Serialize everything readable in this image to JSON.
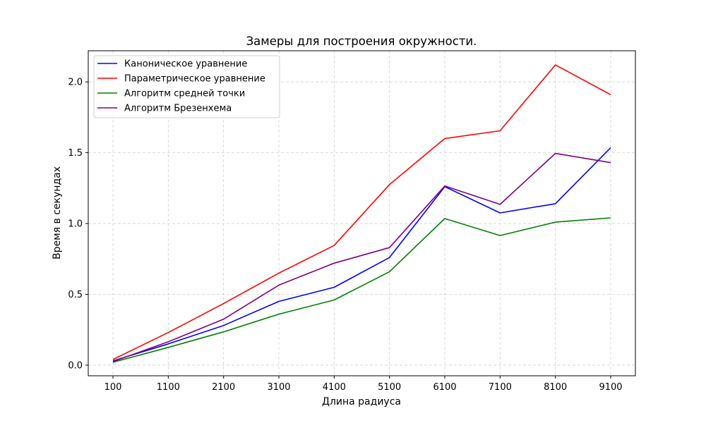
{
  "chart_data": {
    "type": "line",
    "title": "Замеры для построения окружности.",
    "xlabel": "Длина радиуса",
    "ylabel": "Время в секундах",
    "categories": [
      "100",
      "1100",
      "2100",
      "3100",
      "4100",
      "5100",
      "6100",
      "7100",
      "8100",
      "9100"
    ],
    "ylim": [
      -0.075,
      2.22
    ],
    "yticks": [
      "0.0",
      "0.5",
      "1.0",
      "1.5",
      "2.0"
    ],
    "grid": true,
    "legend_position": "top-left",
    "series": [
      {
        "name": "Каноническое уравнение",
        "color": "#0000ff",
        "values": [
          0.03,
          0.15,
          0.28,
          0.45,
          0.55,
          0.76,
          1.26,
          1.075,
          1.14,
          1.535
        ]
      },
      {
        "name": "Параметрическое уравнение",
        "color": "#ff0000",
        "values": [
          0.04,
          0.23,
          0.435,
          0.65,
          0.845,
          1.275,
          1.6,
          1.655,
          2.12,
          1.91
        ]
      },
      {
        "name": "Алгоритм средней точки",
        "color": "#008000",
        "values": [
          0.02,
          0.125,
          0.235,
          0.36,
          0.46,
          0.66,
          1.035,
          0.915,
          1.01,
          1.04
        ]
      },
      {
        "name": "Алгоритм Брезенхема",
        "color": "#800080",
        "values": [
          0.025,
          0.165,
          0.325,
          0.565,
          0.72,
          0.83,
          1.265,
          1.135,
          1.495,
          1.43
        ]
      }
    ]
  }
}
